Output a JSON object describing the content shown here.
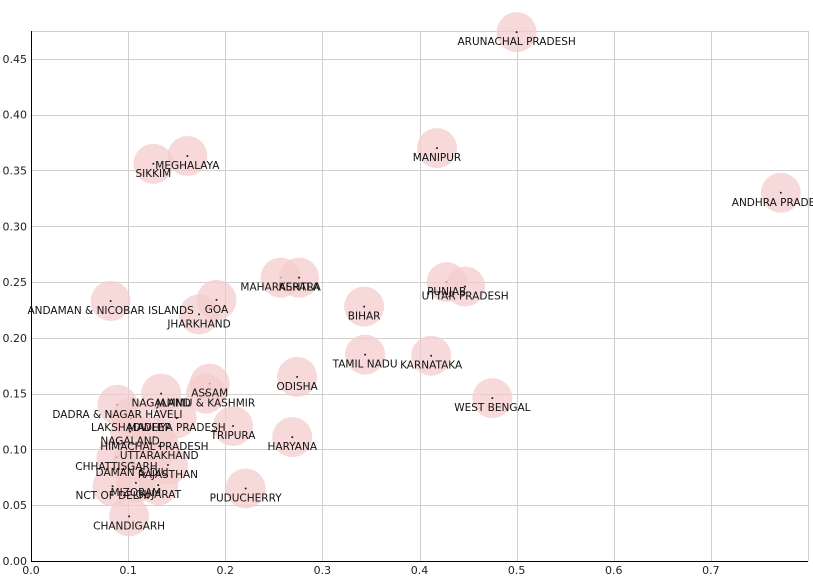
{
  "chart_data": {
    "type": "scatter",
    "title": "",
    "xlabel": "",
    "ylabel": "",
    "xlim": [
      0,
      0.8
    ],
    "ylim": [
      0,
      0.475
    ],
    "x_ticks": [
      "0.0",
      "0.1",
      "0.2",
      "0.3",
      "0.4",
      "0.5",
      "0.6",
      "0.7"
    ],
    "y_ticks": [
      "0.00",
      "0.05",
      "0.10",
      "0.15",
      "0.20",
      "0.25",
      "0.30",
      "0.35",
      "0.40",
      "0.45"
    ],
    "grid": true,
    "bubble_color": "#f4cccc",
    "points": [
      {
        "label": "ARUNACHAL PRADESH",
        "x": 0.5,
        "y": 0.474
      },
      {
        "label": "ANDHRA PRADESH",
        "x": 0.772,
        "y": 0.33
      },
      {
        "label": "MANIPUR",
        "x": 0.418,
        "y": 0.37
      },
      {
        "label": "MEGHALAYA",
        "x": 0.161,
        "y": 0.363
      },
      {
        "label": "SIKKIM",
        "x": 0.126,
        "y": 0.356
      },
      {
        "label": "MAHARASHTRA",
        "x": 0.257,
        "y": 0.254
      },
      {
        "label": "KERALA",
        "x": 0.276,
        "y": 0.254
      },
      {
        "label": "PUNJAB",
        "x": 0.428,
        "y": 0.25
      },
      {
        "label": "UTTAR PRADESH",
        "x": 0.447,
        "y": 0.246
      },
      {
        "label": "GOA",
        "x": 0.191,
        "y": 0.234
      },
      {
        "label": "ANDAMAN & NICOBAR ISLANDS",
        "x": 0.082,
        "y": 0.233
      },
      {
        "label": "BIHAR",
        "x": 0.343,
        "y": 0.228
      },
      {
        "label": "JHARKHAND",
        "x": 0.173,
        "y": 0.221
      },
      {
        "label": "TAMIL NADU",
        "x": 0.344,
        "y": 0.185
      },
      {
        "label": "KARNATAKA",
        "x": 0.412,
        "y": 0.184
      },
      {
        "label": "ODISHA",
        "x": 0.274,
        "y": 0.165
      },
      {
        "label": "ASSAM",
        "x": 0.184,
        "y": 0.159
      },
      {
        "label": "JAMMU & KASHMIR",
        "x": 0.18,
        "y": 0.15
      },
      {
        "label": "NAGALAND",
        "x": 0.134,
        "y": 0.15
      },
      {
        "label": "WEST BENGAL",
        "x": 0.475,
        "y": 0.146
      },
      {
        "label": "DADRA & NAGAR HAVELI",
        "x": 0.089,
        "y": 0.14
      },
      {
        "label": "LAKSHADWEEP",
        "x": 0.103,
        "y": 0.128
      },
      {
        "label": "MADHYA PRADESH",
        "x": 0.15,
        "y": 0.128
      },
      {
        "label": "TRIPURA",
        "x": 0.208,
        "y": 0.121
      },
      {
        "label": "NAGALAND",
        "x": 0.102,
        "y": 0.116
      },
      {
        "label": "HIMACHAL PRADESH",
        "x": 0.127,
        "y": 0.111
      },
      {
        "label": "HARYANA",
        "x": 0.269,
        "y": 0.111
      },
      {
        "label": "UTTARAKHAND",
        "x": 0.132,
        "y": 0.103
      },
      {
        "label": "CHHATTISGARH",
        "x": 0.088,
        "y": 0.093
      },
      {
        "label": "DAMAN & DIU",
        "x": 0.104,
        "y": 0.088
      },
      {
        "label": "RAJASTHAN",
        "x": 0.141,
        "y": 0.086
      },
      {
        "label": "MIZORAM",
        "x": 0.108,
        "y": 0.07
      },
      {
        "label": "GUJARAT",
        "x": 0.131,
        "y": 0.068
      },
      {
        "label": "NCT OF DELHI",
        "x": 0.084,
        "y": 0.067
      },
      {
        "label": "PUDUCHERRY",
        "x": 0.221,
        "y": 0.065
      },
      {
        "label": "CHANDIGARH",
        "x": 0.101,
        "y": 0.04
      }
    ]
  }
}
